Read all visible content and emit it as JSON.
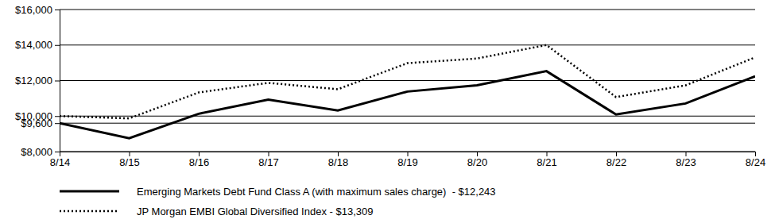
{
  "chart_data": {
    "type": "line",
    "x": [
      "8/14",
      "8/15",
      "8/16",
      "8/17",
      "8/18",
      "8/19",
      "8/20",
      "8/21",
      "8/22",
      "8/23",
      "8/24"
    ],
    "series": [
      {
        "name": "Emerging Markets Debt Fund Class A (with maximum sales charge)  - $12,243",
        "color": "#000000",
        "line_style": "solid",
        "values": [
          9600,
          8750,
          10130,
          10930,
          10310,
          11380,
          11730,
          12530,
          10090,
          10710,
          12243
        ]
      },
      {
        "name": "JP Morgan EMBI Global Diversified Index - $13,309",
        "color": "#000000",
        "line_style": "dotted",
        "values": [
          10000,
          9870,
          11330,
          11870,
          11510,
          12980,
          13240,
          14000,
          11070,
          11730,
          13309
        ]
      }
    ],
    "ylim": [
      8000,
      16000
    ],
    "yticks": [
      {
        "value": 8000,
        "label": "$8,000"
      },
      {
        "value": 9600,
        "label": "$9,600"
      },
      {
        "value": 10000,
        "label": "$10,000"
      },
      {
        "value": 12000,
        "label": "$12,000"
      },
      {
        "value": 14000,
        "label": "$14,000"
      },
      {
        "value": 16000,
        "label": "$16,000"
      }
    ],
    "grid": true,
    "legend": "bottom"
  }
}
